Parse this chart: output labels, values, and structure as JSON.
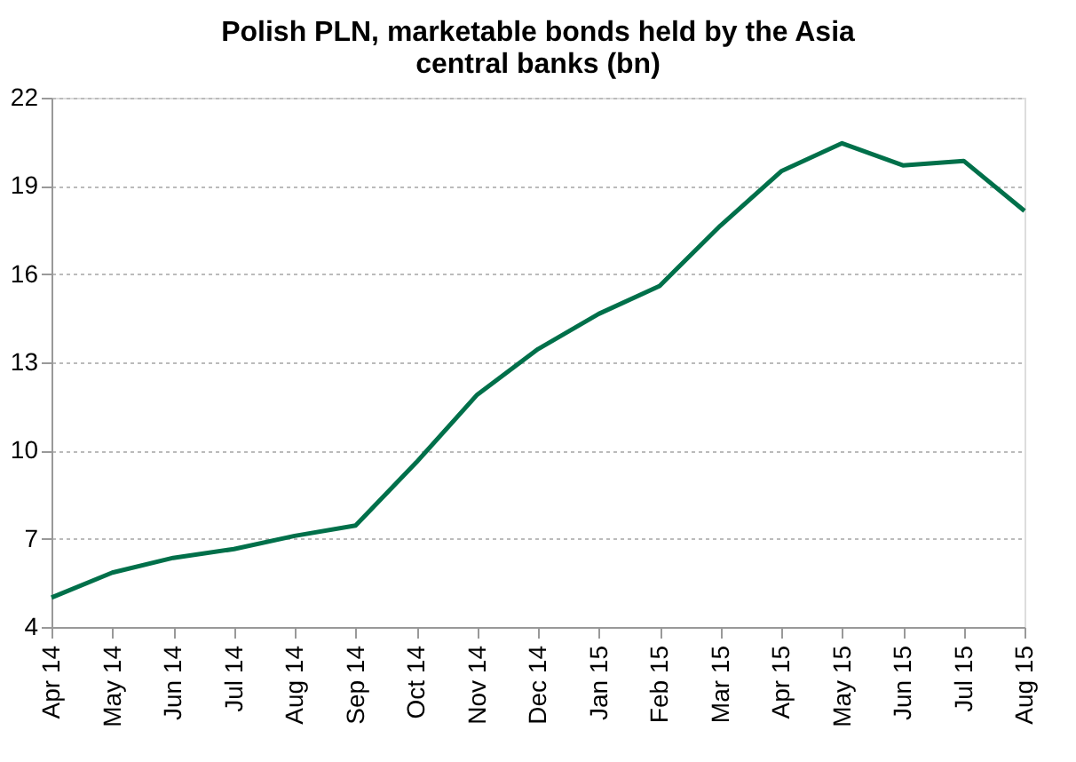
{
  "chart_data": {
    "type": "line",
    "title": [
      "Polish PLN, marketable bonds held by the Asia",
      "central banks (bn)"
    ],
    "categories": [
      "Apr 14",
      "May 14",
      "Jun 14",
      "Jul 14",
      "Aug 14",
      "Sep 14",
      "Oct 14",
      "Nov 14",
      "Dec 14",
      "Jan 15",
      "Feb 15",
      "Mar 15",
      "Apr 15",
      "May 15",
      "Jun 15",
      "Jul 15",
      "Aug 15"
    ],
    "series": [
      {
        "color": "#00704a",
        "values": [
          5.0,
          5.85,
          6.35,
          6.65,
          7.1,
          7.45,
          9.6,
          11.9,
          13.45,
          14.65,
          15.6,
          17.65,
          19.5,
          20.45,
          19.7,
          19.85,
          18.15
        ]
      }
    ],
    "ylim": [
      4,
      22
    ],
    "yticks": [
      4,
      7,
      10,
      13,
      16,
      19,
      22
    ],
    "grid": "y",
    "marker": "none",
    "line_style": "solid"
  }
}
